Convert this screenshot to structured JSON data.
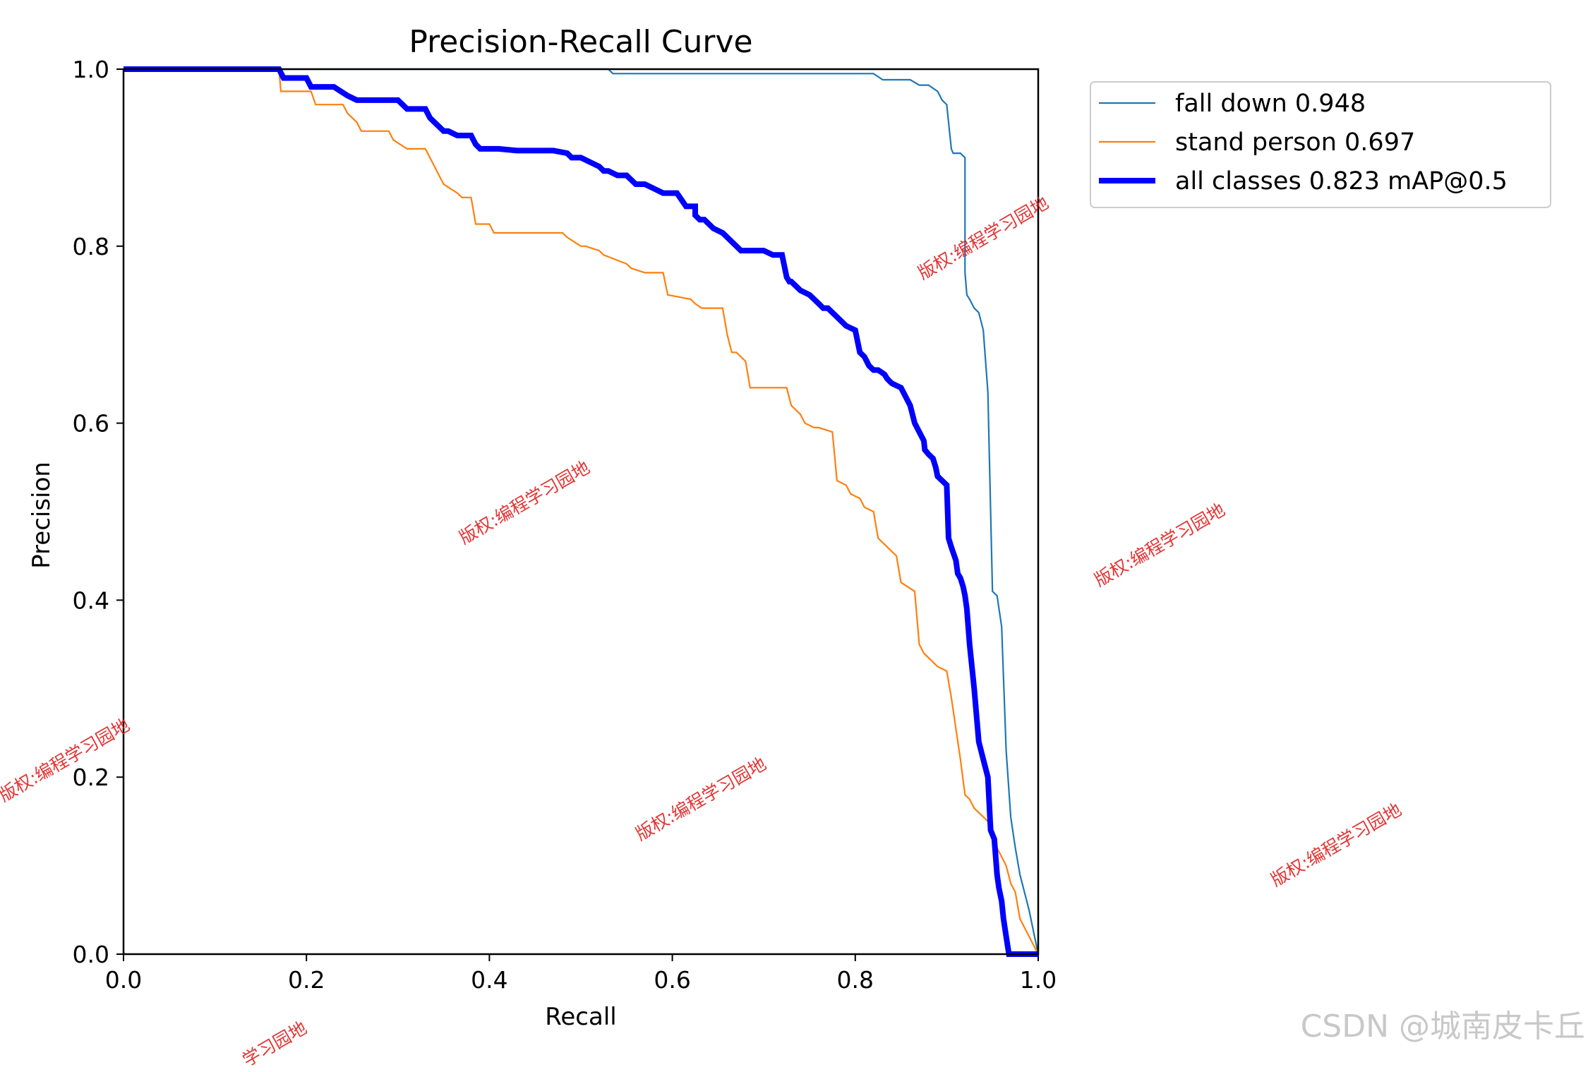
{
  "chart_data": {
    "type": "line",
    "title": "Precision-Recall Curve",
    "xlabel": "Recall",
    "ylabel": "Precision",
    "xlim": [
      0,
      1
    ],
    "ylim": [
      0,
      1
    ],
    "xticks": [
      "0.0",
      "0.2",
      "0.4",
      "0.6",
      "0.8",
      "1.0"
    ],
    "yticks": [
      "0.0",
      "0.2",
      "0.4",
      "0.6",
      "0.8",
      "1.0"
    ],
    "grid": false,
    "legend_position": "outside-top-right",
    "series": [
      {
        "name": "fall down 0.948",
        "color": "#1f77b4",
        "style": "thin",
        "x": [
          0,
          0.53,
          0.535,
          0.6,
          0.7,
          0.8,
          0.82,
          0.83,
          0.86,
          0.87,
          0.88,
          0.89,
          0.895,
          0.9,
          0.902,
          0.905,
          0.907,
          0.91,
          0.915,
          0.92,
          0.92,
          0.922,
          0.925,
          0.93,
          0.935,
          0.94,
          0.945,
          0.95,
          0.955,
          0.96,
          0.965,
          0.97,
          0.975,
          0.98,
          0.99,
          1.0
        ],
        "y": [
          1.0,
          1.0,
          0.995,
          0.995,
          0.995,
          0.995,
          0.995,
          0.988,
          0.988,
          0.982,
          0.982,
          0.975,
          0.965,
          0.96,
          0.94,
          0.91,
          0.905,
          0.905,
          0.905,
          0.9,
          0.77,
          0.745,
          0.74,
          0.73,
          0.725,
          0.705,
          0.635,
          0.41,
          0.405,
          0.37,
          0.23,
          0.155,
          0.12,
          0.09,
          0.05,
          0.0
        ]
      },
      {
        "name": "stand person 0.697",
        "color": "#ff7f0e",
        "style": "thin",
        "x": [
          0,
          0.17,
          0.172,
          0.205,
          0.21,
          0.24,
          0.245,
          0.255,
          0.26,
          0.29,
          0.295,
          0.31,
          0.315,
          0.33,
          0.335,
          0.345,
          0.35,
          0.365,
          0.37,
          0.38,
          0.385,
          0.4,
          0.405,
          0.48,
          0.485,
          0.5,
          0.505,
          0.52,
          0.525,
          0.55,
          0.555,
          0.57,
          0.575,
          0.59,
          0.595,
          0.62,
          0.625,
          0.632,
          0.64,
          0.645,
          0.65,
          0.655,
          0.66,
          0.665,
          0.67,
          0.68,
          0.685,
          0.725,
          0.73,
          0.74,
          0.745,
          0.755,
          0.76,
          0.775,
          0.78,
          0.79,
          0.795,
          0.805,
          0.81,
          0.82,
          0.825,
          0.835,
          0.84,
          0.845,
          0.85,
          0.865,
          0.87,
          0.875,
          0.88,
          0.885,
          0.89,
          0.9,
          0.905,
          0.915,
          0.92,
          0.925,
          0.93,
          0.935,
          0.94,
          0.945,
          0.95,
          0.96,
          0.965,
          0.97,
          0.975,
          0.98,
          1.0
        ],
        "y": [
          1.0,
          1.0,
          0.975,
          0.975,
          0.96,
          0.96,
          0.95,
          0.94,
          0.93,
          0.93,
          0.92,
          0.91,
          0.91,
          0.91,
          0.9,
          0.88,
          0.87,
          0.86,
          0.855,
          0.855,
          0.825,
          0.825,
          0.815,
          0.815,
          0.81,
          0.8,
          0.8,
          0.795,
          0.79,
          0.78,
          0.775,
          0.77,
          0.77,
          0.77,
          0.745,
          0.74,
          0.735,
          0.73,
          0.73,
          0.73,
          0.73,
          0.73,
          0.7,
          0.68,
          0.68,
          0.67,
          0.64,
          0.64,
          0.62,
          0.61,
          0.6,
          0.595,
          0.595,
          0.59,
          0.535,
          0.53,
          0.52,
          0.515,
          0.505,
          0.5,
          0.47,
          0.46,
          0.455,
          0.45,
          0.42,
          0.41,
          0.35,
          0.34,
          0.335,
          0.33,
          0.325,
          0.32,
          0.29,
          0.22,
          0.18,
          0.175,
          0.165,
          0.16,
          0.155,
          0.15,
          0.13,
          0.11,
          0.1,
          0.08,
          0.07,
          0.04,
          0.0
        ]
      },
      {
        "name": "all classes 0.823 mAP@0.5",
        "color": "#0000ff",
        "style": "thick",
        "x": [
          0,
          0.17,
          0.175,
          0.2,
          0.205,
          0.23,
          0.245,
          0.255,
          0.265,
          0.3,
          0.31,
          0.33,
          0.335,
          0.34,
          0.345,
          0.35,
          0.355,
          0.365,
          0.38,
          0.385,
          0.39,
          0.4,
          0.41,
          0.43,
          0.45,
          0.47,
          0.485,
          0.49,
          0.5,
          0.51,
          0.52,
          0.525,
          0.53,
          0.54,
          0.55,
          0.555,
          0.56,
          0.57,
          0.58,
          0.59,
          0.6,
          0.605,
          0.615,
          0.625,
          0.625,
          0.63,
          0.635,
          0.645,
          0.655,
          0.66,
          0.665,
          0.67,
          0.675,
          0.68,
          0.685,
          0.69,
          0.7,
          0.71,
          0.72,
          0.725,
          0.728,
          0.73,
          0.735,
          0.74,
          0.75,
          0.755,
          0.76,
          0.765,
          0.77,
          0.775,
          0.78,
          0.79,
          0.8,
          0.805,
          0.81,
          0.815,
          0.82,
          0.825,
          0.828,
          0.832,
          0.835,
          0.84,
          0.85,
          0.86,
          0.865,
          0.87,
          0.875,
          0.876,
          0.88,
          0.885,
          0.888,
          0.89,
          0.895,
          0.9,
          0.9,
          0.902,
          0.905,
          0.91,
          0.912,
          0.915,
          0.918,
          0.92,
          0.922,
          0.925,
          0.93,
          0.935,
          0.94,
          0.945,
          0.948,
          0.952,
          0.955,
          0.957,
          0.96,
          0.962,
          0.965,
          0.968,
          0.97,
          0.975,
          0.98,
          0.99,
          1.0
        ],
        "y": [
          1.0,
          1.0,
          0.99,
          0.99,
          0.98,
          0.98,
          0.97,
          0.965,
          0.965,
          0.965,
          0.955,
          0.955,
          0.945,
          0.94,
          0.935,
          0.93,
          0.93,
          0.925,
          0.925,
          0.915,
          0.91,
          0.91,
          0.91,
          0.908,
          0.908,
          0.908,
          0.905,
          0.9,
          0.9,
          0.895,
          0.89,
          0.885,
          0.885,
          0.88,
          0.88,
          0.875,
          0.87,
          0.87,
          0.865,
          0.86,
          0.86,
          0.86,
          0.845,
          0.845,
          0.835,
          0.83,
          0.83,
          0.82,
          0.815,
          0.81,
          0.805,
          0.8,
          0.795,
          0.795,
          0.795,
          0.795,
          0.795,
          0.79,
          0.79,
          0.765,
          0.76,
          0.76,
          0.755,
          0.75,
          0.745,
          0.74,
          0.735,
          0.73,
          0.73,
          0.725,
          0.72,
          0.71,
          0.705,
          0.68,
          0.675,
          0.665,
          0.66,
          0.66,
          0.658,
          0.655,
          0.65,
          0.645,
          0.64,
          0.62,
          0.6,
          0.59,
          0.58,
          0.57,
          0.565,
          0.56,
          0.55,
          0.54,
          0.535,
          0.53,
          0.53,
          0.47,
          0.46,
          0.445,
          0.43,
          0.425,
          0.415,
          0.405,
          0.39,
          0.35,
          0.3,
          0.24,
          0.22,
          0.2,
          0.14,
          0.13,
          0.09,
          0.075,
          0.06,
          0.04,
          0.02,
          0.0,
          0.0,
          0.0,
          0.0,
          0.0,
          0.0
        ]
      }
    ]
  },
  "watermarks": [
    "版权:编程学习园地",
    "版权:编程学习园地",
    "版权:编程学习园地",
    "版权:编程学习园地",
    "版权:编程学习园地",
    "版权:编程学习园地",
    "学习园地"
  ],
  "credit": "CSDN @城南皮卡丘"
}
